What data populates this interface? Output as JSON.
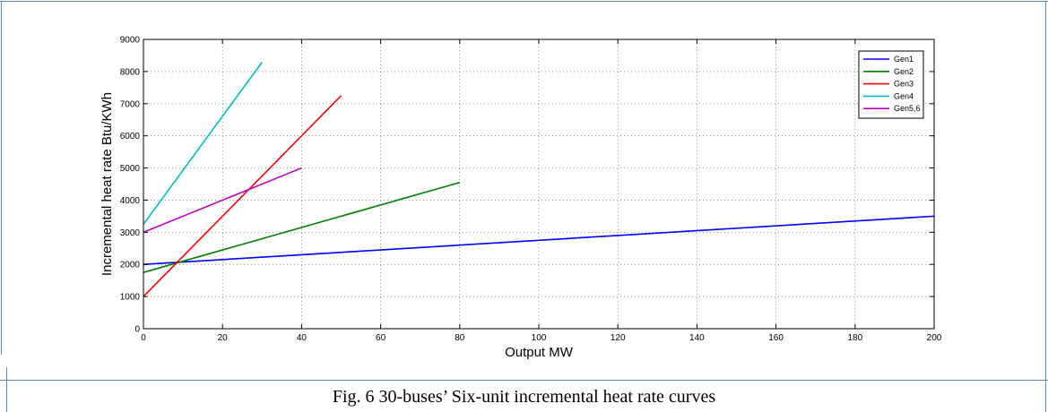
{
  "caption": "Fig. 6 30-buses’ Six-unit incremental heat rate curves",
  "chart_data": {
    "type": "line",
    "title": "",
    "xlabel": "Output MW",
    "ylabel": "Incremental heat rate Btu/KWh",
    "xlim": [
      0,
      200
    ],
    "ylim": [
      0,
      9000
    ],
    "xticks": [
      0,
      20,
      40,
      60,
      80,
      100,
      120,
      140,
      160,
      180,
      200
    ],
    "yticks": [
      0,
      1000,
      2000,
      3000,
      4000,
      5000,
      6000,
      7000,
      8000,
      9000
    ],
    "grid": true,
    "legend_position": "top-right",
    "series": [
      {
        "name": "Gen1",
        "color": "#0000ff",
        "x": [
          0,
          200
        ],
        "y": [
          2000,
          3500
        ]
      },
      {
        "name": "Gen2",
        "color": "#008000",
        "x": [
          0,
          80
        ],
        "y": [
          1750,
          4550
        ]
      },
      {
        "name": "Gen3",
        "color": "#ff0000",
        "x": [
          0,
          50
        ],
        "y": [
          1000,
          7250
        ]
      },
      {
        "name": "Gen4",
        "color": "#00bfbf",
        "x": [
          0,
          30
        ],
        "y": [
          3250,
          8290
        ]
      },
      {
        "name": "Gen5,6",
        "color": "#bf00bf",
        "x": [
          0,
          40
        ],
        "y": [
          3000,
          5000
        ]
      }
    ]
  }
}
